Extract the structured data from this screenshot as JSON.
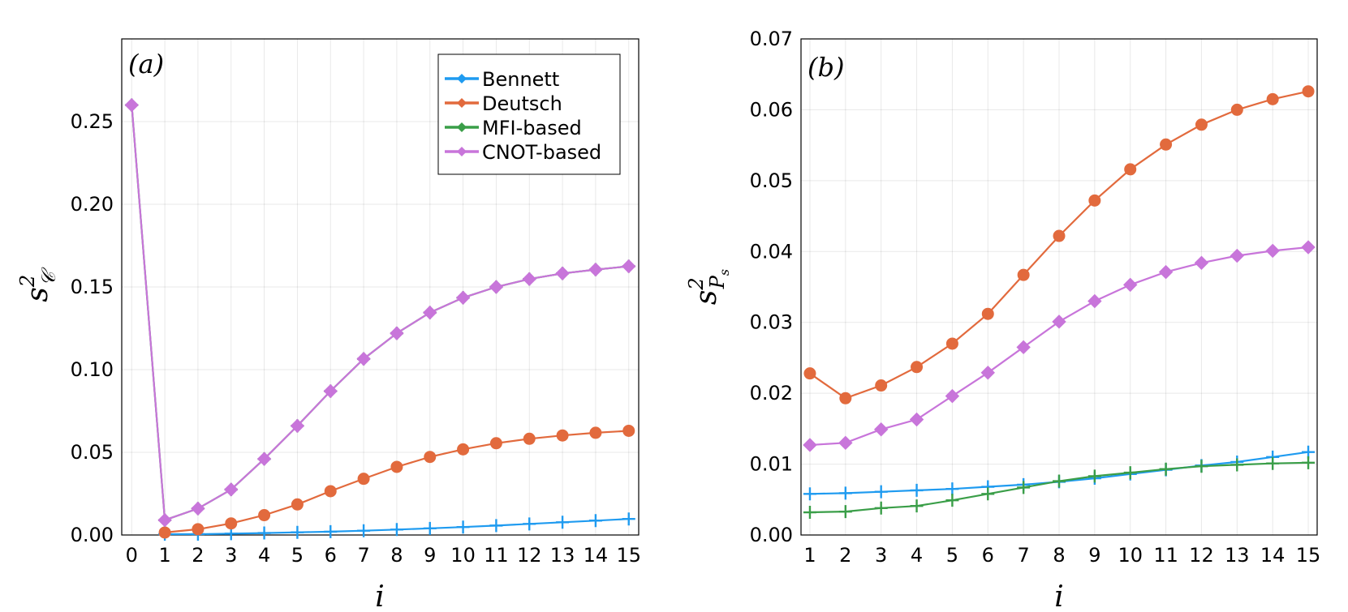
{
  "chart_data": [
    {
      "type": "line",
      "panel_label": "(a)",
      "xlabel": "i",
      "ylabel": "s",
      "ylabel_sup": "2",
      "ylabel_sub": "𝒞",
      "xlim": [
        -0.3,
        15.3
      ],
      "ylim": [
        0.0,
        0.3
      ],
      "x_ticks": [
        0,
        1,
        2,
        3,
        4,
        5,
        6,
        7,
        8,
        9,
        10,
        11,
        12,
        13,
        14,
        15
      ],
      "y_ticks": [
        0.0,
        0.05,
        0.1,
        0.15,
        0.2,
        0.25
      ],
      "y_tick_labels": [
        "0.00",
        "0.05",
        "0.10",
        "0.15",
        "0.20",
        "0.25"
      ],
      "legend_position": "top-right",
      "legend": [
        "Bennett",
        "Deutsch",
        "MFI-based",
        "CNOT-based"
      ],
      "series": [
        {
          "name": "Bennett",
          "color": "#1f9bf0",
          "marker": "cross",
          "x": [
            1,
            2,
            3,
            4,
            5,
            6,
            7,
            8,
            9,
            10,
            11,
            12,
            13,
            14,
            15
          ],
          "values": [
            0.0005,
            0.0005,
            0.0008,
            0.0012,
            0.0016,
            0.002,
            0.0026,
            0.0033,
            0.004,
            0.0048,
            0.0057,
            0.0067,
            0.0077,
            0.0087,
            0.0097
          ]
        },
        {
          "name": "Deutsch",
          "color": "#e26a3d",
          "marker": "circle",
          "x": [
            1,
            2,
            3,
            4,
            5,
            6,
            7,
            8,
            9,
            10,
            11,
            12,
            13,
            14,
            15
          ],
          "values": [
            0.0015,
            0.0035,
            0.007,
            0.012,
            0.0185,
            0.0265,
            0.034,
            0.0412,
            0.0472,
            0.0518,
            0.0555,
            0.0582,
            0.0602,
            0.0618,
            0.063
          ]
        },
        {
          "name": "MFI-based",
          "color": "#3a9e48",
          "marker": "cross",
          "x": [
            0,
            1,
            2,
            3,
            4,
            5,
            6,
            7,
            8,
            9,
            10,
            11,
            12,
            13,
            14,
            15
          ],
          "values": [
            0.26,
            0.009,
            0.016,
            0.0275,
            0.046,
            0.066,
            0.087,
            0.1065,
            0.122,
            0.1345,
            0.1435,
            0.15,
            0.1548,
            0.1582,
            0.1605,
            0.1625
          ]
        },
        {
          "name": "CNOT-based",
          "color": "#c875da",
          "marker": "diamond",
          "x": [
            0,
            1,
            2,
            3,
            4,
            5,
            6,
            7,
            8,
            9,
            10,
            11,
            12,
            13,
            14,
            15
          ],
          "values": [
            0.26,
            0.009,
            0.016,
            0.0275,
            0.046,
            0.066,
            0.087,
            0.1065,
            0.122,
            0.1345,
            0.1435,
            0.15,
            0.1548,
            0.1582,
            0.1605,
            0.1625
          ]
        }
      ]
    },
    {
      "type": "line",
      "panel_label": "(b)",
      "xlabel": "i",
      "ylabel": "s",
      "ylabel_sup": "2",
      "ylabel_sub": "P",
      "ylabel_subsub": "s",
      "xlim": [
        0.75,
        15.25
      ],
      "ylim": [
        0.0,
        0.07
      ],
      "x_ticks": [
        1,
        2,
        3,
        4,
        5,
        6,
        7,
        8,
        9,
        10,
        11,
        12,
        13,
        14,
        15
      ],
      "y_ticks": [
        0.0,
        0.01,
        0.02,
        0.03,
        0.04,
        0.05,
        0.06,
        0.07
      ],
      "y_tick_labels": [
        "0.00",
        "0.01",
        "0.02",
        "0.03",
        "0.04",
        "0.05",
        "0.06",
        "0.07"
      ],
      "series": [
        {
          "name": "Bennett",
          "color": "#1f9bf0",
          "marker": "cross",
          "x": [
            1,
            2,
            3,
            4,
            5,
            6,
            7,
            8,
            9,
            10,
            11,
            12,
            13,
            14,
            15
          ],
          "values": [
            0.0058,
            0.0059,
            0.0061,
            0.0063,
            0.0065,
            0.0068,
            0.0071,
            0.0075,
            0.008,
            0.0086,
            0.0092,
            0.0098,
            0.0103,
            0.011,
            0.0117
          ]
        },
        {
          "name": "Deutsch",
          "color": "#e26a3d",
          "marker": "circle",
          "x": [
            1,
            2,
            3,
            4,
            5,
            6,
            7,
            8,
            9,
            10,
            11,
            12,
            13,
            14,
            15
          ],
          "values": [
            0.0228,
            0.0193,
            0.0211,
            0.0237,
            0.027,
            0.0312,
            0.0367,
            0.0422,
            0.0472,
            0.0516,
            0.0551,
            0.0579,
            0.06,
            0.0615,
            0.0626
          ]
        },
        {
          "name": "MFI-based",
          "color": "#3a9e48",
          "marker": "cross",
          "x": [
            1,
            2,
            3,
            4,
            5,
            6,
            7,
            8,
            9,
            10,
            11,
            12,
            13,
            14,
            15
          ],
          "values": [
            0.0032,
            0.0033,
            0.0038,
            0.0041,
            0.0049,
            0.0058,
            0.0067,
            0.0076,
            0.0083,
            0.0088,
            0.0093,
            0.0097,
            0.0099,
            0.0101,
            0.0102
          ]
        },
        {
          "name": "CNOT-based",
          "color": "#c875da",
          "marker": "diamond",
          "x": [
            1,
            2,
            3,
            4,
            5,
            6,
            7,
            8,
            9,
            10,
            11,
            12,
            13,
            14,
            15
          ],
          "values": [
            0.0127,
            0.013,
            0.0149,
            0.0163,
            0.0196,
            0.0229,
            0.0265,
            0.0301,
            0.033,
            0.0353,
            0.0371,
            0.0384,
            0.0394,
            0.0401,
            0.0406
          ]
        }
      ]
    }
  ]
}
